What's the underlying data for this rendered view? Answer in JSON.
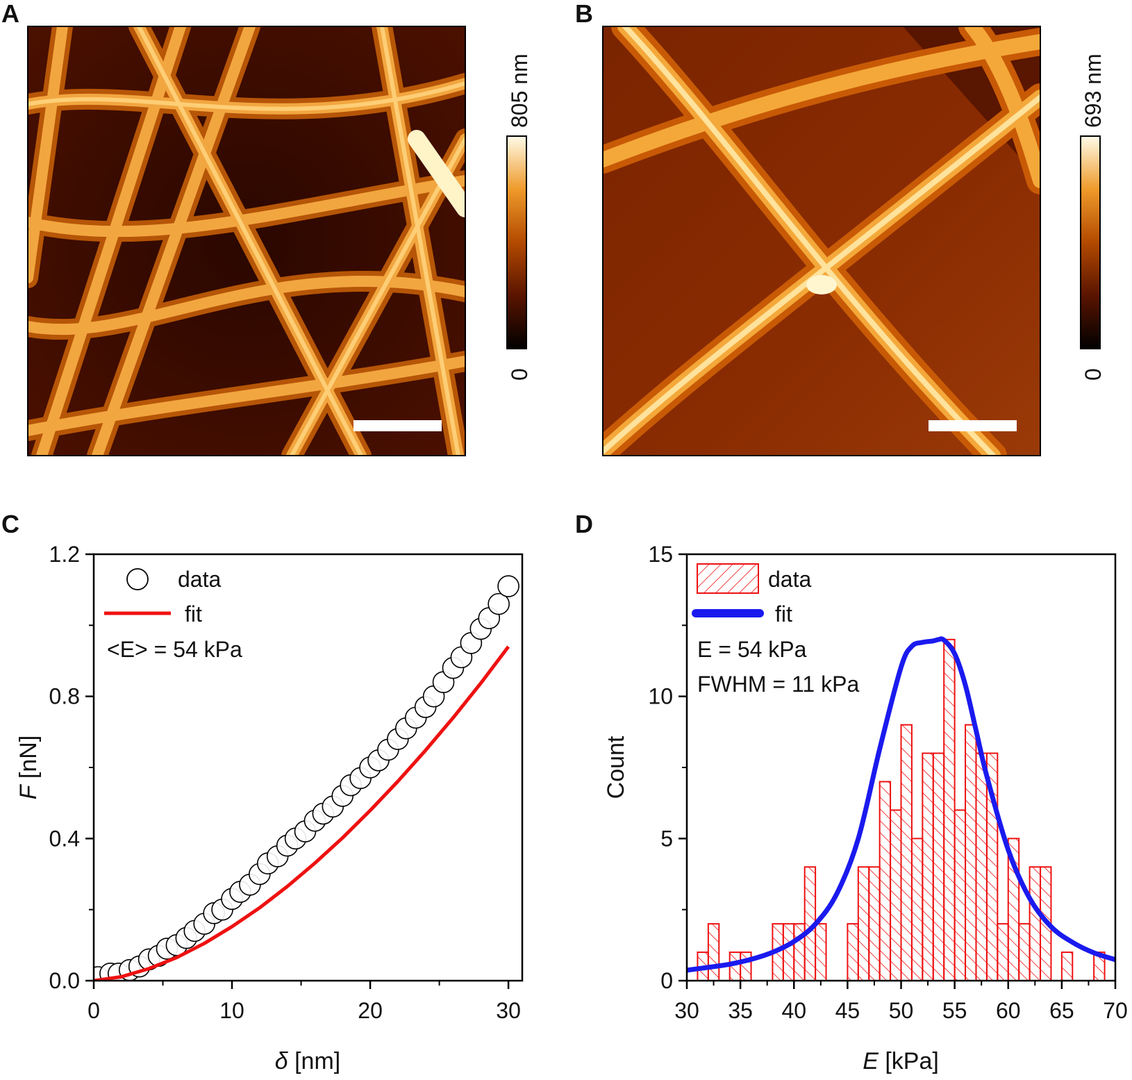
{
  "panels": {
    "a": {
      "letter": "A",
      "colorbar": {
        "max_label": "805 nm",
        "min_label": "0"
      }
    },
    "b": {
      "letter": "B",
      "colorbar": {
        "max_label": "693 nm",
        "min_label": "0"
      }
    },
    "c": {
      "letter": "C"
    },
    "d": {
      "letter": "D"
    }
  },
  "colors": {
    "afm_dark": "#1a0500",
    "afm_mid": "#b34a00",
    "afm_bright": "#f0a030",
    "afm_highlight": "#fff6d0",
    "fit_red": "#ee1111",
    "fit_blue": "#1a1aee",
    "hist_red": "#ee1111"
  },
  "chart_data": [
    {
      "panel": "C",
      "type": "scatter",
      "xlabel_symbol": "δ",
      "xlabel_unit": " [nm]",
      "ylabel_symbol": "F",
      "ylabel_unit": " [nN]",
      "xlim": [
        0,
        31
      ],
      "ylim": [
        0,
        1.2
      ],
      "xticks": [
        "0",
        "10",
        "20",
        "30"
      ],
      "yticks": [
        "0.0",
        "0.4",
        "0.8",
        "1.2"
      ],
      "legend": {
        "data_label": "data",
        "fit_label": "fit",
        "annotation": "<E> = 54 kPa"
      },
      "series": [
        {
          "name": "data",
          "marker": "open-circle",
          "x": [
            0.3,
            1.2,
            1.8,
            2.6,
            3.3,
            4.0,
            4.7,
            5.3,
            6.0,
            6.7,
            7.3,
            8.0,
            8.7,
            9.3,
            10.0,
            10.6,
            11.3,
            12.0,
            12.6,
            13.3,
            14.0,
            14.6,
            15.3,
            16.0,
            16.6,
            17.3,
            18.0,
            18.6,
            19.3,
            20.0,
            20.6,
            21.3,
            22.0,
            22.6,
            23.3,
            24.0,
            24.6,
            25.3,
            26.0,
            26.6,
            27.3,
            28.0,
            28.6,
            29.3,
            30.0
          ],
          "y": [
            0.01,
            0.02,
            0.02,
            0.03,
            0.04,
            0.06,
            0.07,
            0.09,
            0.1,
            0.12,
            0.14,
            0.16,
            0.19,
            0.2,
            0.23,
            0.25,
            0.27,
            0.3,
            0.33,
            0.35,
            0.38,
            0.4,
            0.42,
            0.45,
            0.47,
            0.49,
            0.52,
            0.55,
            0.57,
            0.6,
            0.62,
            0.65,
            0.68,
            0.71,
            0.74,
            0.77,
            0.8,
            0.84,
            0.88,
            0.91,
            0.95,
            0.99,
            1.02,
            1.06,
            1.11
          ]
        },
        {
          "name": "fit",
          "type": "line",
          "x": [
            0,
            2,
            4,
            6,
            8,
            10,
            12,
            14,
            16,
            18,
            20,
            22,
            24,
            26,
            28,
            30
          ],
          "y": [
            0,
            0.011,
            0.034,
            0.065,
            0.105,
            0.152,
            0.205,
            0.265,
            0.331,
            0.402,
            0.479,
            0.561,
            0.648,
            0.74,
            0.837,
            0.94
          ]
        }
      ]
    },
    {
      "panel": "D",
      "type": "bar",
      "xlabel_symbol": "E",
      "xlabel_unit": " [kPa]",
      "ylabel": "Count",
      "xlim": [
        30,
        70
      ],
      "ylim": [
        0,
        15
      ],
      "xticks": [
        "30",
        "35",
        "40",
        "45",
        "50",
        "55",
        "60",
        "65",
        "70"
      ],
      "yticks": [
        "0",
        "5",
        "10",
        "15"
      ],
      "legend": {
        "data_label": "data",
        "fit_label": "fit",
        "annotation_1": "E = 54 kPa",
        "annotation_2": "FWHM = 11 kPa"
      },
      "bin_width": 1.0,
      "bin_starts": [
        31,
        32,
        34,
        35,
        38,
        39,
        40,
        41,
        42,
        45,
        46,
        47,
        48,
        49,
        50,
        51,
        52,
        53,
        54,
        55,
        56,
        57,
        58,
        59,
        60,
        61,
        62,
        63,
        65,
        68
      ],
      "counts": [
        1,
        2,
        1,
        1,
        2,
        2,
        2,
        4,
        2,
        2,
        4,
        4,
        7,
        6,
        9,
        5,
        8,
        8,
        12,
        6,
        9,
        8,
        8,
        2,
        5,
        2,
        4,
        4,
        1,
        1
      ],
      "series": [
        {
          "name": "fit",
          "type": "line",
          "x": [
            30,
            32,
            34,
            36,
            38,
            40,
            42,
            44,
            46,
            48,
            50,
            51,
            52,
            53,
            53.5,
            54,
            55,
            56,
            57,
            58,
            60,
            62,
            64,
            66,
            68,
            70
          ],
          "y": [
            0.37,
            0.47,
            0.58,
            0.75,
            1.0,
            1.38,
            1.99,
            3.06,
            4.99,
            8.15,
            11.03,
            11.76,
            11.9,
            11.95,
            12.0,
            11.98,
            11.5,
            10.4,
            8.8,
            7.2,
            4.6,
            2.9,
            1.9,
            1.35,
            0.98,
            0.74
          ]
        }
      ]
    }
  ]
}
